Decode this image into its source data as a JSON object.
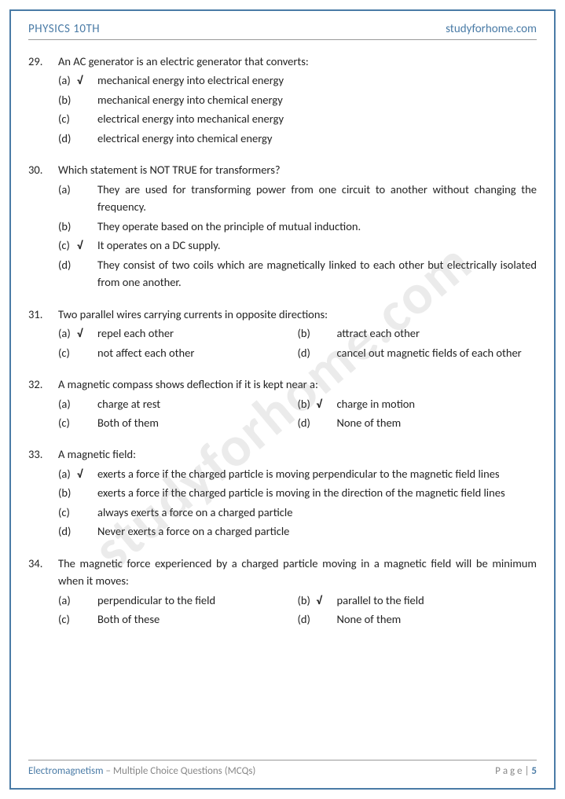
{
  "header": {
    "left": "PHYSICS 10TH",
    "right": "studyforhome.com"
  },
  "watermark": "studyforhome.com",
  "questions": [
    {
      "num": "29.",
      "text": "An AC generator is an electric generator that converts:",
      "layout": "full",
      "options": [
        {
          "letter": "(a)",
          "correct": "√",
          "text": "mechanical energy into electrical energy"
        },
        {
          "letter": "(b)",
          "correct": "",
          "text": "mechanical energy into chemical energy"
        },
        {
          "letter": "(c)",
          "correct": "",
          "text": "electrical energy into mechanical energy"
        },
        {
          "letter": "(d)",
          "correct": "",
          "text": "electrical energy into chemical energy"
        }
      ]
    },
    {
      "num": "30.",
      "text": "Which statement is NOT TRUE for transformers?",
      "layout": "full",
      "options": [
        {
          "letter": "(a)",
          "correct": "",
          "text": "They are used for transforming power from one circuit to another without changing the frequency."
        },
        {
          "letter": "(b)",
          "correct": "",
          "text": "They operate based on the principle of mutual induction."
        },
        {
          "letter": "(c)",
          "correct": "√",
          "text": "It operates on a DC supply."
        },
        {
          "letter": "(d)",
          "correct": "",
          "text": "They consist of two coils which are magnetically linked to each other but electrically isolated from one another."
        }
      ]
    },
    {
      "num": "31.",
      "text": "Two parallel wires carrying currents in opposite directions:",
      "layout": "two",
      "options": [
        {
          "letter": "(a)",
          "correct": "√",
          "text": "repel each other"
        },
        {
          "letter": "(b)",
          "correct": "",
          "text": "attract each other"
        },
        {
          "letter": "(c)",
          "correct": "",
          "text": "not affect each other"
        },
        {
          "letter": "(d)",
          "correct": "",
          "text": "cancel out magnetic fields of each other"
        }
      ]
    },
    {
      "num": "32.",
      "text": "A magnetic compass shows deflection if it is kept near a:",
      "layout": "two",
      "options": [
        {
          "letter": "(a)",
          "correct": "",
          "text": "charge at rest"
        },
        {
          "letter": "(b)",
          "correct": "√",
          "text": "charge in motion"
        },
        {
          "letter": "(c)",
          "correct": "",
          "text": "Both of them"
        },
        {
          "letter": "(d)",
          "correct": "",
          "text": "None of them"
        }
      ]
    },
    {
      "num": "33.",
      "text": "A magnetic field:",
      "layout": "full",
      "options": [
        {
          "letter": "(a)",
          "correct": "√",
          "text": "exerts a force if the charged particle is moving perpendicular to the magnetic field lines"
        },
        {
          "letter": "(b)",
          "correct": "",
          "text": "exerts a force if the charged particle is moving in the direction of the magnetic field lines"
        },
        {
          "letter": "(c)",
          "correct": "",
          "text": "always exerts a force on a charged particle"
        },
        {
          "letter": "(d)",
          "correct": "",
          "text": "Never exerts a force on a charged particle"
        }
      ]
    },
    {
      "num": "34.",
      "text": "The magnetic force experienced by a charged particle moving in a magnetic field will be minimum when it moves:",
      "layout": "two",
      "options": [
        {
          "letter": "(a)",
          "correct": "",
          "text": "perpendicular to the field"
        },
        {
          "letter": "(b)",
          "correct": "√",
          "text": " parallel to the field"
        },
        {
          "letter": "(c)",
          "correct": "",
          "text": "Both of these"
        },
        {
          "letter": "(d)",
          "correct": "",
          "text": "None of them"
        }
      ]
    }
  ],
  "footer": {
    "topic": "Electromagnetism",
    "sub": " – Multiple Choice Questions (MCQs)",
    "page_label": "P a g e ",
    "page_sep": "| ",
    "page_num": "5"
  },
  "colors": {
    "accent": "#4a7ba6",
    "text": "#222222",
    "muted": "#888888",
    "border": "#999999",
    "watermark": "rgba(120,120,120,0.15)"
  }
}
